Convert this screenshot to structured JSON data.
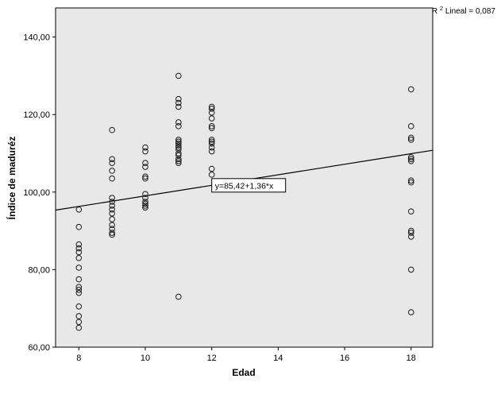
{
  "figure": {
    "background": "#ffffff",
    "plot_background": "#e8e8e8",
    "frame_color": "#000000",
    "marker_color": "#1a1a1a",
    "r2": {
      "base": "R",
      "sup": "2",
      "rest": " Lineal = 0,087"
    }
  },
  "chart_data": {
    "type": "scatter",
    "title": "",
    "xlabel": "Edad",
    "ylabel": "Índice de maduréz",
    "xlim": [
      7.3,
      18.65
    ],
    "ylim": [
      60,
      147.5
    ],
    "xticks": [
      8,
      10,
      12,
      14,
      16,
      18
    ],
    "yticks": [
      60,
      80,
      100,
      120,
      140
    ],
    "ytick_labels": [
      "60,00",
      "80,00",
      "100,00",
      "120,00",
      "140,00"
    ],
    "grid": false,
    "legend": null,
    "marker": "open-circle",
    "regression": {
      "slope": 1.36,
      "intercept": 85.42,
      "label": "y=85,42+1,36*x",
      "label_anchor_x": 12,
      "r_squared_label": "R2 Lineal = 0,087",
      "r_squared": 0.087
    },
    "points": [
      [
        8,
        95.5
      ],
      [
        8,
        91
      ],
      [
        8,
        86.5
      ],
      [
        8,
        85.5
      ],
      [
        8,
        84.5
      ],
      [
        8,
        83
      ],
      [
        8,
        80.5
      ],
      [
        8,
        77.5
      ],
      [
        8,
        75.5
      ],
      [
        8,
        74.8
      ],
      [
        8,
        74
      ],
      [
        8,
        70.5
      ],
      [
        8,
        68
      ],
      [
        8,
        66.5
      ],
      [
        8,
        65
      ],
      [
        9,
        116
      ],
      [
        9,
        108.5
      ],
      [
        9,
        107.5
      ],
      [
        9,
        105.5
      ],
      [
        9,
        103.5
      ],
      [
        9,
        98.5
      ],
      [
        9,
        97.5
      ],
      [
        9,
        96.5
      ],
      [
        9,
        95.5
      ],
      [
        9,
        94.5
      ],
      [
        9,
        93
      ],
      [
        9,
        91.5
      ],
      [
        9,
        90.5
      ],
      [
        9,
        89.5
      ],
      [
        9,
        89
      ],
      [
        10,
        111.5
      ],
      [
        10,
        110.5
      ],
      [
        10,
        107.5
      ],
      [
        10,
        106.5
      ],
      [
        10,
        104
      ],
      [
        10,
        103.5
      ],
      [
        10,
        99.5
      ],
      [
        10,
        98.5
      ],
      [
        10,
        97.5
      ],
      [
        10,
        97
      ],
      [
        10,
        96.5
      ],
      [
        10,
        96
      ],
      [
        11,
        130
      ],
      [
        11,
        124
      ],
      [
        11,
        123
      ],
      [
        11,
        122
      ],
      [
        11,
        118
      ],
      [
        11,
        117
      ],
      [
        11,
        113.5
      ],
      [
        11,
        113
      ],
      [
        11,
        112.5
      ],
      [
        11,
        112
      ],
      [
        11,
        111.5
      ],
      [
        11,
        111
      ],
      [
        11,
        110
      ],
      [
        11,
        109.5
      ],
      [
        11,
        108.5
      ],
      [
        11,
        108
      ],
      [
        11,
        107.5
      ],
      [
        11,
        73
      ],
      [
        12,
        122
      ],
      [
        12,
        121.5
      ],
      [
        12,
        120.5
      ],
      [
        12,
        119
      ],
      [
        12,
        117
      ],
      [
        12,
        116.5
      ],
      [
        12,
        113.5
      ],
      [
        12,
        113
      ],
      [
        12,
        112.5
      ],
      [
        12,
        111.5
      ],
      [
        12,
        110.5
      ],
      [
        12,
        106
      ],
      [
        12,
        104.5
      ],
      [
        18,
        126.5
      ],
      [
        18,
        117
      ],
      [
        18,
        114
      ],
      [
        18,
        113.5
      ],
      [
        18,
        109
      ],
      [
        18,
        108.5
      ],
      [
        18,
        108
      ],
      [
        18,
        103
      ],
      [
        18,
        102.5
      ],
      [
        18,
        95
      ],
      [
        18,
        90
      ],
      [
        18,
        89.5
      ],
      [
        18,
        88.5
      ],
      [
        18,
        80
      ],
      [
        18,
        69
      ]
    ]
  }
}
